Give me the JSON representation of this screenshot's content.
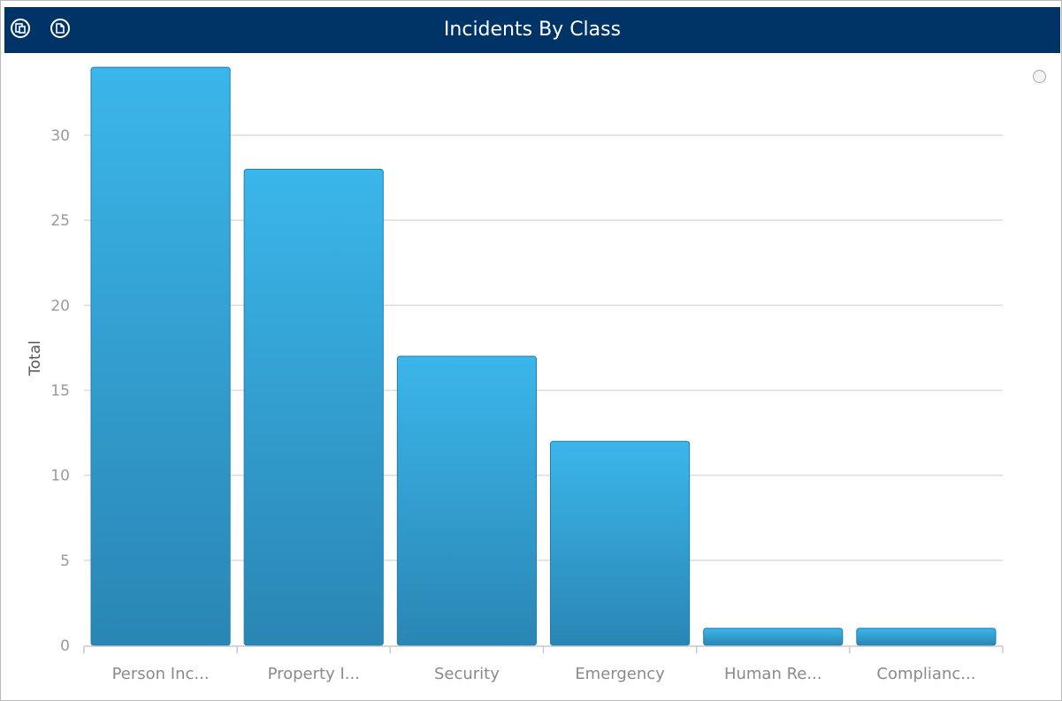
{
  "header": {
    "title": "Incidents By Class",
    "buttons": [
      {
        "name": "export-icon"
      },
      {
        "name": "copy-icon"
      }
    ]
  },
  "colors": {
    "header_bg": "#003366",
    "bar_top": "#3bb6ea",
    "bar_bottom": "#2a86b4",
    "bar_stroke": "#1f7fae",
    "grid": "#dcdcdc"
  },
  "chart_data": {
    "type": "bar",
    "title": "Incidents By Class",
    "xlabel": "",
    "ylabel": "Total",
    "categories": [
      "Person Inc...",
      "Property I...",
      "Security",
      "Emergency",
      "Human Re...",
      "Complianc..."
    ],
    "values": [
      34,
      28,
      17,
      12,
      1,
      1
    ],
    "ylim": [
      0,
      35
    ],
    "yticks": [
      0,
      5,
      10,
      15,
      20,
      25,
      30
    ],
    "grid": true,
    "legend": "none"
  }
}
